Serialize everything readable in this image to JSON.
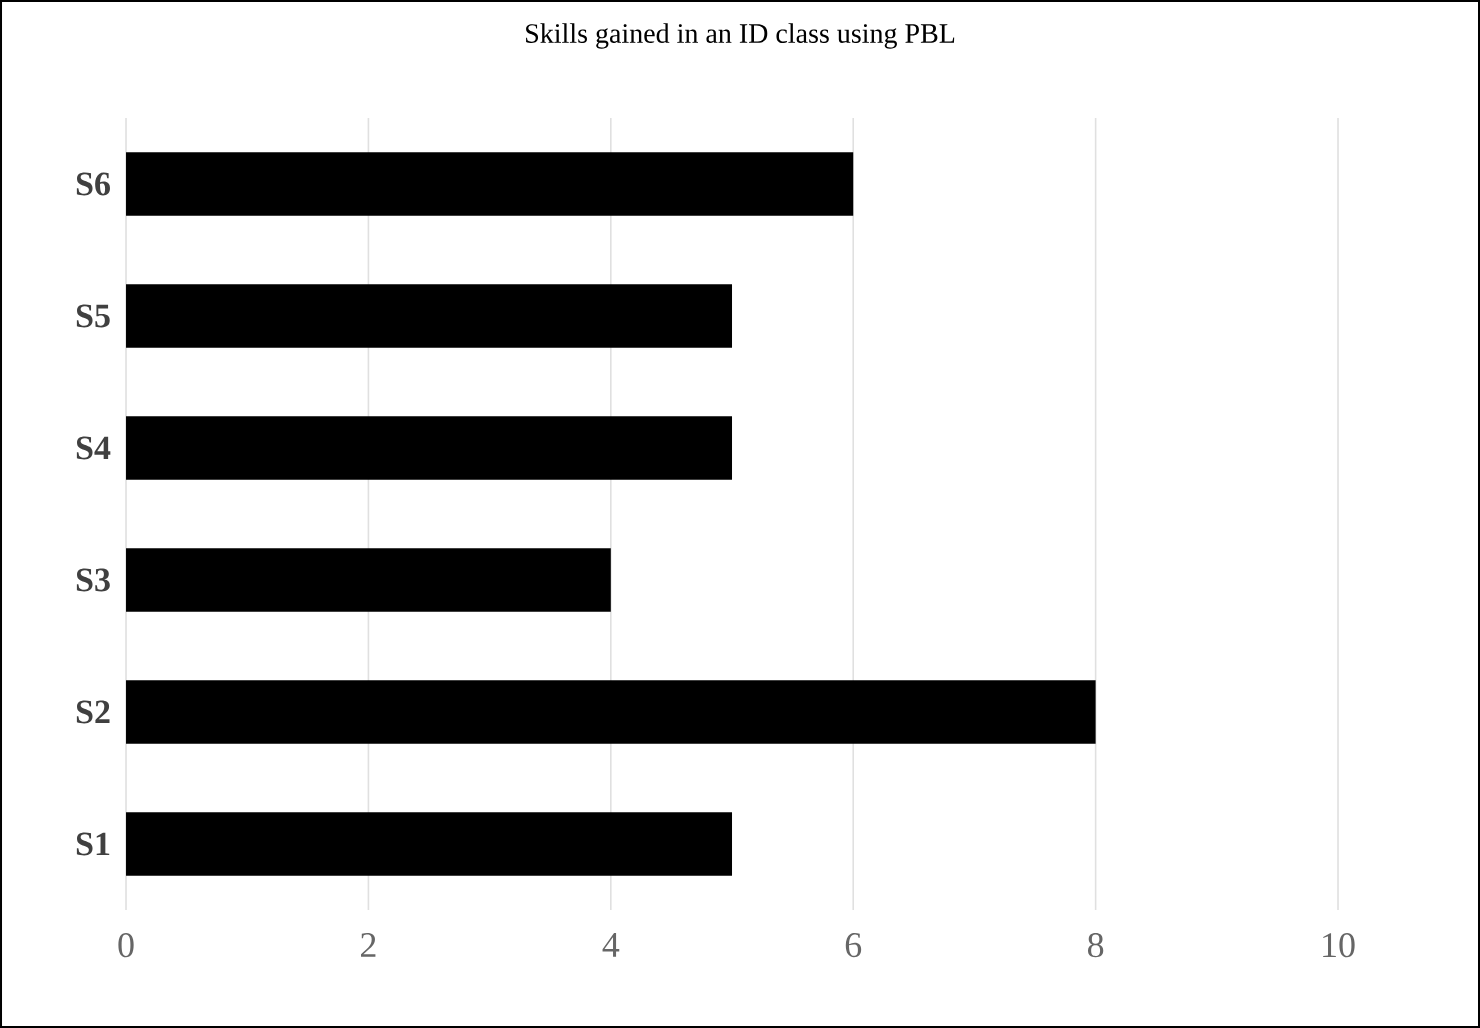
{
  "chart_data": {
    "type": "bar",
    "orientation": "horizontal",
    "title": "Skills gained in an ID class using PBL",
    "categories": [
      "S6",
      "S5",
      "S4",
      "S3",
      "S2",
      "S1"
    ],
    "values": [
      6,
      5,
      5,
      4,
      8,
      5
    ],
    "color": "#000000",
    "xlim": [
      0,
      10
    ],
    "xticks": [
      0,
      2,
      4,
      6,
      8,
      10
    ],
    "grid": "x"
  }
}
